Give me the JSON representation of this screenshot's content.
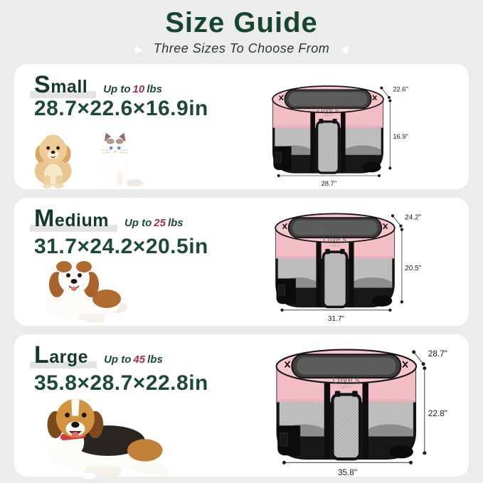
{
  "header": {
    "title": "Size Guide",
    "subtitle": "Three Sizes To Choose From",
    "arrow_left_icon": "▶",
    "arrow_right_icon": "◀"
  },
  "brand": {
    "line1": "Love's",
    "line2": "cabin"
  },
  "colors": {
    "title_green": "#17462e",
    "text_green": "#1d4a37",
    "number_red": "#ab2b4e",
    "pen_pink": "#f6c5cb",
    "page_bg": "#ececec",
    "card_bg": "#ffffff"
  },
  "sizes": [
    {
      "name": "Small",
      "weight_prefix": "Up to",
      "weight_value": "10",
      "weight_unit": "lbs",
      "dimensions": "28.7×22.6×16.9in",
      "pen_labels": {
        "top": "22.6\"",
        "side": "16.9\"",
        "bottom": "28.7\""
      },
      "animal_icons": "puppy-icon, cat-icon"
    },
    {
      "name": "Medium",
      "weight_prefix": "Up to",
      "weight_value": "25",
      "weight_unit": "lbs",
      "dimensions": "31.7×24.2×20.5in",
      "pen_labels": {
        "top": "24.2\"",
        "side": "20.5\"",
        "bottom": "31.7\""
      },
      "animal_icons": "spaniel-icon"
    },
    {
      "name": "Large",
      "weight_prefix": "Up to",
      "weight_value": "45",
      "weight_unit": "lbs",
      "dimensions": "35.8×28.7×22.8in",
      "pen_labels": {
        "top": "28.7\"",
        "side": "22.8\"",
        "bottom": "35.8\""
      },
      "animal_icons": "beagle-icon"
    }
  ]
}
